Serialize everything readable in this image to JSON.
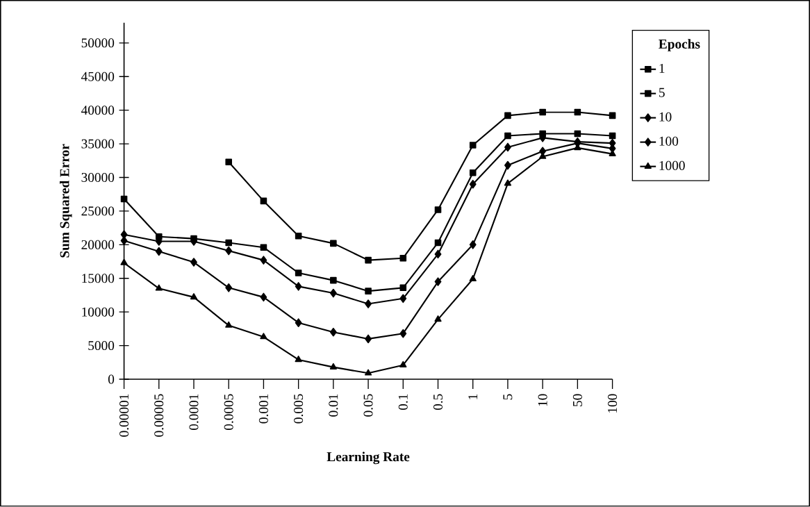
{
  "chart_data": {
    "type": "line",
    "xlabel": "Learning Rate",
    "ylabel": "Sum Squared Error",
    "legend_title": "Epochs",
    "categories": [
      "0.00001",
      "0.00005",
      "0.0001",
      "0.0005",
      "0.001",
      "0.005",
      "0.01",
      "0.05",
      "0.1",
      "0.5",
      "1",
      "5",
      "10",
      "50",
      "100"
    ],
    "series": [
      {
        "name": "1",
        "color": "#000000",
        "marker": "square",
        "values": [
          null,
          null,
          null,
          32300,
          26500,
          21300,
          20200,
          17700,
          18000,
          25200,
          34800,
          39200,
          39700,
          39700,
          39200
        ]
      },
      {
        "name": "5",
        "color": "#000000",
        "marker": "square",
        "values": [
          26800,
          21200,
          20900,
          20300,
          19600,
          15800,
          14700,
          13100,
          13600,
          20300,
          30700,
          36200,
          36500,
          36500,
          36200
        ]
      },
      {
        "name": "10",
        "color": "#000000",
        "marker": "diamond",
        "values": [
          21500,
          20500,
          20500,
          19100,
          17700,
          13800,
          12800,
          11200,
          12000,
          18600,
          29000,
          34500,
          35900,
          35300,
          35100
        ]
      },
      {
        "name": "100",
        "color": "#000000",
        "marker": "diamond",
        "values": [
          20600,
          19000,
          17400,
          13600,
          12200,
          8400,
          7000,
          6000,
          6800,
          14500,
          20000,
          31800,
          33900,
          35100,
          34300
        ]
      },
      {
        "name": "1000",
        "color": "#000000",
        "marker": "triangle",
        "values": [
          17300,
          13500,
          12200,
          8000,
          6300,
          2900,
          1800,
          900,
          2100,
          8900,
          14900,
          29100,
          33100,
          34400,
          33500
        ]
      }
    ],
    "ylim": [
      0,
      53000
    ],
    "yticks": [
      0,
      5000,
      10000,
      15000,
      20000,
      25000,
      30000,
      35000,
      40000,
      45000,
      50000
    ],
    "grid": false,
    "legend": "right",
    "line_style": "solid"
  }
}
